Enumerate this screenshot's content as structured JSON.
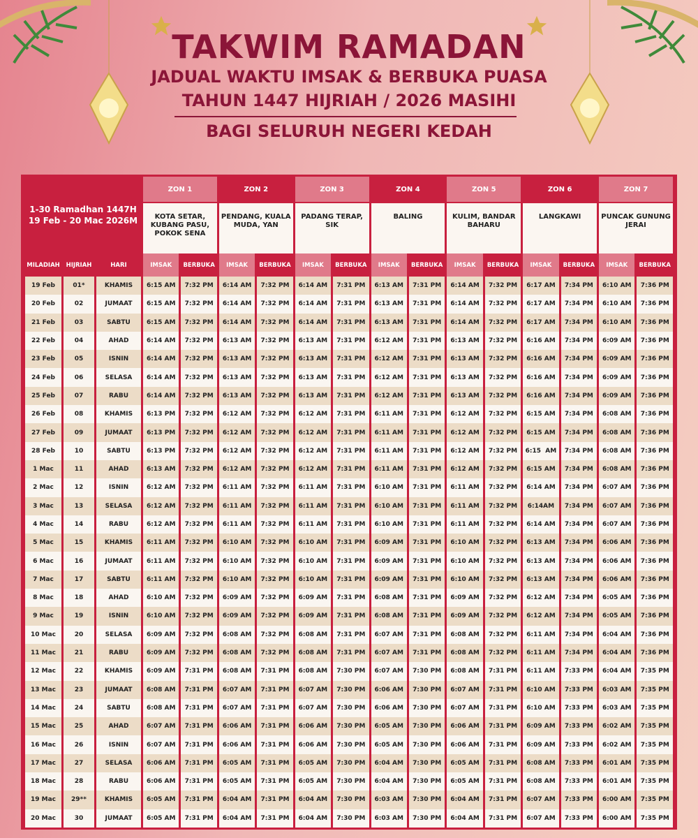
{
  "header": {
    "title": "TAKWIM RAMADAN",
    "subtitle1": "JADUAL WAKTU IMSAK & BERBUKA PUASA",
    "subtitle2": "TAHUN 1447 HIJRIAH / 2026 MASIHI",
    "subtitle3": "BAGI SELURUH NEGERI KEDAH"
  },
  "colors": {
    "title": "#8b1538",
    "crimson": "#c8203f",
    "pink": "#e07a8a",
    "row_alt": "#ecdcc7",
    "row": "#faf6f1"
  },
  "table": {
    "range_label": "1-30 Ramadhan 1447H 19 Feb - 20 Mac 2026M",
    "zones": [
      {
        "label": "ZON 1",
        "area": "KOTA SETAR, KUBANG PASU, POKOK SENA"
      },
      {
        "label": "ZON 2",
        "area": "PENDANG, KUALA MUDA, YAN"
      },
      {
        "label": "ZON 3",
        "area": "PADANG TERAP, SIK"
      },
      {
        "label": "ZON 4",
        "area": "BALING"
      },
      {
        "label": "ZON 5",
        "area": "KULIM, BANDAR BAHARU"
      },
      {
        "label": "ZON 6",
        "area": "LANGKAWI"
      },
      {
        "label": "ZON 7",
        "area": "PUNCAK GUNUNG JERAI"
      }
    ],
    "columns": {
      "miladiah": "MILADIAH",
      "hijriah": "HIJRIAH",
      "hari": "HARI",
      "imsak": "IMSAK",
      "berbuka": "BERBUKA"
    },
    "rows": [
      [
        "19 Feb",
        "01*",
        "KHAMIS",
        "6:15 AM",
        "7:32 PM",
        "6:14 AM",
        "7:32 PM",
        "6:14 AM",
        "7:31 PM",
        "6:13 AM",
        "7:31 PM",
        "6:14 AM",
        "7:32 PM",
        "6:17 AM",
        "7:34 PM",
        "6:10 AM",
        "7:36 PM"
      ],
      [
        "20 Feb",
        "02",
        "JUMAAT",
        "6:15 AM",
        "7:32 PM",
        "6:14 AM",
        "7:32 PM",
        "6:14 AM",
        "7:31 PM",
        "6:13 AM",
        "7:31 PM",
        "6:14 AM",
        "7:32 PM",
        "6:17 AM",
        "7:34 PM",
        "6:10 AM",
        "7:36 PM"
      ],
      [
        "21 Feb",
        "03",
        "SABTU",
        "6:15 AM",
        "7:32 PM",
        "6:14 AM",
        "7:32 PM",
        "6:14 AM",
        "7:31 PM",
        "6:13 AM",
        "7:31 PM",
        "6:14 AM",
        "7:32 PM",
        "6:17 AM",
        "7:34 PM",
        "6:10 AM",
        "7:36 PM"
      ],
      [
        "22 Feb",
        "04",
        "AHAD",
        "6:14 AM",
        "7:32 PM",
        "6:13 AM",
        "7:32 PM",
        "6:13 AM",
        "7:31 PM",
        "6:12 AM",
        "7:31 PM",
        "6:13 AM",
        "7:32 PM",
        "6:16 AM",
        "7:34 PM",
        "6:09 AM",
        "7:36 PM"
      ],
      [
        "23 Feb",
        "05",
        "ISNIN",
        "6:14 AM",
        "7:32 PM",
        "6:13 AM",
        "7:32 PM",
        "6:13 AM",
        "7:31 PM",
        "6:12 AM",
        "7:31 PM",
        "6:13 AM",
        "7:32 PM",
        "6:16 AM",
        "7:34 PM",
        "6:09 AM",
        "7:36 PM"
      ],
      [
        "24 Feb",
        "06",
        "SELASA",
        "6:14 AM",
        "7:32 PM",
        "6:13 AM",
        "7:32 PM",
        "6:13 AM",
        "7:31 PM",
        "6:12 AM",
        "7:31 PM",
        "6:13 AM",
        "7:32 PM",
        "6:16 AM",
        "7:34 PM",
        "6:09 AM",
        "7:36 PM"
      ],
      [
        "25 Feb",
        "07",
        "RABU",
        "6:14 AM",
        "7:32 PM",
        "6:13 AM",
        "7:32 PM",
        "6:13 AM",
        "7:31 PM",
        "6:12 AM",
        "7:31 PM",
        "6:13 AM",
        "7:32 PM",
        "6:16 AM",
        "7:34 PM",
        "6:09 AM",
        "7:36 PM"
      ],
      [
        "26 Feb",
        "08",
        "KHAMIS",
        "6:13 PM",
        "7:32 PM",
        "6:12 AM",
        "7:32 PM",
        "6:12 AM",
        "7:31 PM",
        "6:11 AM",
        "7:31 PM",
        "6:12 AM",
        "7:32 PM",
        "6:15 AM",
        "7:34 PM",
        "6:08 AM",
        "7:36 PM"
      ],
      [
        "27 Feb",
        "09",
        "JUMAAT",
        "6:13 PM",
        "7:32 PM",
        "6:12 AM",
        "7:32 PM",
        "6:12 AM",
        "7:31 PM",
        "6:11 AM",
        "7:31 PM",
        "6:12 AM",
        "7:32 PM",
        "6:15 AM",
        "7:34 PM",
        "6:08 AM",
        "7:36 PM"
      ],
      [
        "28 Feb",
        "10",
        "SABTU",
        "6:13 PM",
        "7:32 PM",
        "6:12 AM",
        "7:32 PM",
        "6:12 AM",
        "7:31 PM",
        "6:11 AM",
        "7:31 PM",
        "6:12 AM",
        "7:32 PM",
        "6:15  AM",
        "7:34 PM",
        "6:08 AM",
        "7:36 PM"
      ],
      [
        "1 Mac",
        "11",
        "AHAD",
        "6:13 AM",
        "7:32 PM",
        "6:12 AM",
        "7:32 PM",
        "6:12 AM",
        "7:31 PM",
        "6:11 AM",
        "7:31 PM",
        "6:12 AM",
        "7:32 PM",
        "6:15 AM",
        "7:34 PM",
        "6:08 AM",
        "7:36 PM"
      ],
      [
        "2 Mac",
        "12",
        "ISNIN",
        "6:12 AM",
        "7:32 PM",
        "6:11 AM",
        "7:32 PM",
        "6:11 AM",
        "7:31 PM",
        "6:10 AM",
        "7:31 PM",
        "6:11 AM",
        "7:32 PM",
        "6:14 AM",
        "7:34 PM",
        "6:07 AM",
        "7:36 PM"
      ],
      [
        "3 Mac",
        "13",
        "SELASA",
        "6:12 AM",
        "7:32 PM",
        "6:11 AM",
        "7:32 PM",
        "6:11 AM",
        "7:31 PM",
        "6:10 AM",
        "7:31 PM",
        "6:11 AM",
        "7:32 PM",
        "6:14AM",
        "7:34 PM",
        "6:07 AM",
        "7:36 PM"
      ],
      [
        "4 Mac",
        "14",
        "RABU",
        "6:12 AM",
        "7:32 PM",
        "6:11 AM",
        "7:32 PM",
        "6:11 AM",
        "7:31 PM",
        "6:10 AM",
        "7:31 PM",
        "6:11 AM",
        "7:32 PM",
        "6:14 AM",
        "7:34 PM",
        "6:07 AM",
        "7:36 PM"
      ],
      [
        "5 Mac",
        "15",
        "KHAMIS",
        "6:11 AM",
        "7:32 PM",
        "6:10 AM",
        "7:32 PM",
        "6:10 AM",
        "7:31 PM",
        "6:09 AM",
        "7:31 PM",
        "6:10 AM",
        "7:32 PM",
        "6:13 AM",
        "7:34 PM",
        "6:06 AM",
        "7:36 PM"
      ],
      [
        "6 Mac",
        "16",
        "JUMAAT",
        "6:11 AM",
        "7:32 PM",
        "6:10 AM",
        "7:32 PM",
        "6:10 AM",
        "7:31 PM",
        "6:09 AM",
        "7:31 PM",
        "6:10 AM",
        "7:32 PM",
        "6:13 AM",
        "7:34 PM",
        "6:06 AM",
        "7:36 PM"
      ],
      [
        "7 Mac",
        "17",
        "SABTU",
        "6:11 AM",
        "7:32 PM",
        "6:10 AM",
        "7:32 PM",
        "6:10 AM",
        "7:31 PM",
        "6:09 AM",
        "7:31 PM",
        "6:10 AM",
        "7:32 PM",
        "6:13 AM",
        "7:34 PM",
        "6:06 AM",
        "7:36 PM"
      ],
      [
        "8 Mac",
        "18",
        "AHAD",
        "6:10 AM",
        "7:32 PM",
        "6:09 AM",
        "7:32 PM",
        "6:09 AM",
        "7:31 PM",
        "6:08 AM",
        "7:31 PM",
        "6:09 AM",
        "7:32 PM",
        "6:12 AM",
        "7:34 PM",
        "6:05 AM",
        "7:36 PM"
      ],
      [
        "9 Mac",
        "19",
        "ISNIN",
        "6:10 AM",
        "7:32 PM",
        "6:09 AM",
        "7:32 PM",
        "6:09 AM",
        "7:31 PM",
        "6:08 AM",
        "7:31 PM",
        "6:09 AM",
        "7:32 PM",
        "6:12 AM",
        "7:34 PM",
        "6:05 AM",
        "7:36 PM"
      ],
      [
        "10 Mac",
        "20",
        "SELASA",
        "6:09 AM",
        "7:32 PM",
        "6:08 AM",
        "7:32 PM",
        "6:08 AM",
        "7:31 PM",
        "6:07 AM",
        "7:31 PM",
        "6:08 AM",
        "7:32 PM",
        "6:11 AM",
        "7:34 PM",
        "6:04 AM",
        "7:36 PM"
      ],
      [
        "11 Mac",
        "21",
        "RABU",
        "6:09 AM",
        "7:32 PM",
        "6:08 AM",
        "7:32 PM",
        "6:08 AM",
        "7:31 PM",
        "6:07 AM",
        "7:31 PM",
        "6:08 AM",
        "7:32 PM",
        "6:11 AM",
        "7:34 PM",
        "6:04 AM",
        "7:36 PM"
      ],
      [
        "12 Mac",
        "22",
        "KHAMIS",
        "6:09 AM",
        "7:31 PM",
        "6:08 AM",
        "7:31 PM",
        "6:08 AM",
        "7:30 PM",
        "6:07 AM",
        "7:30 PM",
        "6:08 AM",
        "7:31 PM",
        "6:11 AM",
        "7:33 PM",
        "6:04 AM",
        "7:35 PM"
      ],
      [
        "13 Mac",
        "23",
        "JUMAAT",
        "6:08 AM",
        "7:31 PM",
        "6:07 AM",
        "7:31 PM",
        "6:07 AM",
        "7:30 PM",
        "6:06 AM",
        "7:30 PM",
        "6:07 AM",
        "7:31 PM",
        "6:10 AM",
        "7:33 PM",
        "6:03 AM",
        "7:35 PM"
      ],
      [
        "14 Mac",
        "24",
        "SABTU",
        "6:08 AM",
        "7:31 PM",
        "6:07 AM",
        "7:31 PM",
        "6:07 AM",
        "7:30 PM",
        "6:06 AM",
        "7:30 PM",
        "6:07 AM",
        "7:31 PM",
        "6:10 AM",
        "7:33 PM",
        "6:03 AM",
        "7:35 PM"
      ],
      [
        "15 Mac",
        "25",
        "AHAD",
        "6:07 AM",
        "7:31 PM",
        "6:06 AM",
        "7:31 PM",
        "6:06 AM",
        "7:30 PM",
        "6:05 AM",
        "7:30 PM",
        "6:06 AM",
        "7:31 PM",
        "6:09 AM",
        "7:33 PM",
        "6:02 AM",
        "7:35 PM"
      ],
      [
        "16 Mac",
        "26",
        "ISNIN",
        "6:07 AM",
        "7:31 PM",
        "6:06 AM",
        "7:31 PM",
        "6:06 AM",
        "7:30 PM",
        "6:05 AM",
        "7:30 PM",
        "6:06 AM",
        "7:31 PM",
        "6:09 AM",
        "7:33 PM",
        "6:02 AM",
        "7:35 PM"
      ],
      [
        "17 Mac",
        "27",
        "SELASA",
        "6:06 AM",
        "7:31 PM",
        "6:05 AM",
        "7:31 PM",
        "6:05 AM",
        "7:30 PM",
        "6:04 AM",
        "7:30 PM",
        "6:05 AM",
        "7:31 PM",
        "6:08 AM",
        "7:33 PM",
        "6:01 AM",
        "7:35 PM"
      ],
      [
        "18 Mac",
        "28",
        "RABU",
        "6:06 AM",
        "7:31 PM",
        "6:05 AM",
        "7:31 PM",
        "6:05 AM",
        "7:30 PM",
        "6:04 AM",
        "7:30 PM",
        "6:05 AM",
        "7:31 PM",
        "6:08 AM",
        "7:33 PM",
        "6:01 AM",
        "7:35 PM"
      ],
      [
        "19 Mac",
        "29**",
        "KHAMIS",
        "6:05 AM",
        "7:31 PM",
        "6:04 AM",
        "7:31 PM",
        "6:04 AM",
        "7:30 PM",
        "6:03 AM",
        "7:30 PM",
        "6:04 AM",
        "7:31 PM",
        "6:07 AM",
        "7:33 PM",
        "6:00 AM",
        "7:35 PM"
      ],
      [
        "20 Mac",
        "30",
        "JUMAAT",
        "6:05 AM",
        "7:31 PM",
        "6:04 AM",
        "7:31 PM",
        "6:04 AM",
        "7:30 PM",
        "6:03 AM",
        "7:30 PM",
        "6:04 AM",
        "7:31 PM",
        "6:07 AM",
        "7:33 PM",
        "6:00 AM",
        "7:35 PM"
      ]
    ]
  },
  "decorations": {
    "icons": [
      "palm-leaf-icon",
      "star-icon",
      "lantern-icon"
    ]
  }
}
